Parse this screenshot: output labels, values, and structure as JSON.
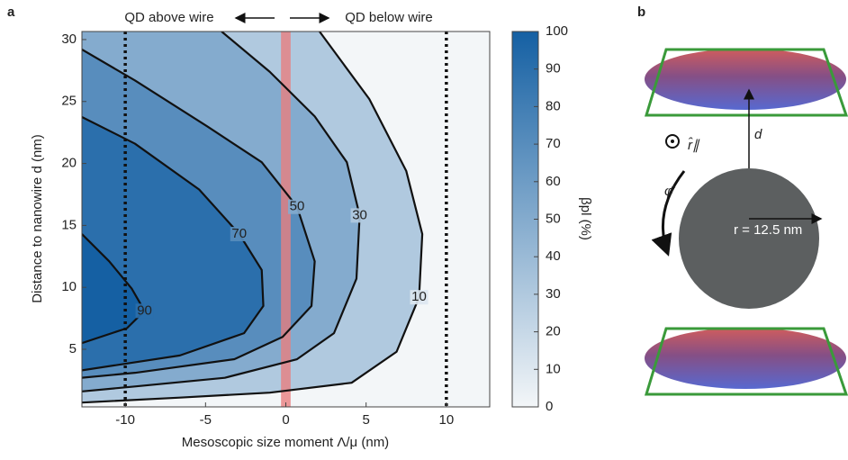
{
  "chart_data": {
    "type": "contour",
    "panel_label": "a",
    "annotations": {
      "left": "QD above wire",
      "right": "QD below wire"
    },
    "xlabel": "Mesoscopic size moment Λ/μ (nm)",
    "ylabel": "Distance to nanowire d (nm)",
    "xlim": [
      -12.7,
      12.7
    ],
    "ylim": [
      0.35,
      30.65
    ],
    "xticks": [
      -10,
      -5,
      0,
      5,
      10
    ],
    "yticks": [
      5,
      10,
      15,
      20,
      25,
      30
    ],
    "vlines": [
      -10,
      10
    ],
    "highlight": [
      -0.3,
      0.3
    ],
    "highlight_color": "#e88080",
    "contours": [
      {
        "level": 10,
        "x": [
          2.1,
          5.2,
          7.5,
          8.5,
          8.3,
          6.9,
          4.1,
          -1.0,
          -6.6,
          -12.7
        ],
        "y": [
          30.65,
          25.2,
          19.4,
          14.3,
          9.2,
          4.8,
          2.3,
          1.5,
          1.1,
          0.7
        ]
      },
      {
        "level": 30,
        "x": [
          -4.0,
          -1.0,
          1.8,
          3.8,
          4.6,
          4.4,
          3.0,
          0.7,
          -3.8,
          -9.4,
          -12.7
        ],
        "y": [
          30.65,
          27.4,
          23.8,
          20.1,
          15.8,
          10.7,
          6.3,
          4.2,
          2.7,
          2.0,
          1.6
        ]
      },
      {
        "level": 50,
        "x": [
          -12.7,
          -9.4,
          -4.9,
          -1.5,
          0.7,
          1.8,
          1.6,
          -0.2,
          -3.2,
          -9.4,
          -12.7
        ],
        "y": [
          29.2,
          26.7,
          23.0,
          20.1,
          16.5,
          12.1,
          8.5,
          6.0,
          4.2,
          3.1,
          2.7
        ]
      },
      {
        "level": 70,
        "x": [
          -12.7,
          -9.4,
          -5.4,
          -2.9,
          -1.5,
          -1.4,
          -2.6,
          -6.6,
          -12.7
        ],
        "y": [
          23.75,
          21.6,
          17.9,
          14.3,
          11.4,
          8.5,
          6.3,
          4.5,
          3.3
        ]
      },
      {
        "level": 90,
        "x": [
          -12.7,
          -11.0,
          -9.6,
          -8.8,
          -9.9,
          -12.7
        ],
        "y": [
          14.3,
          12.1,
          9.9,
          8.1,
          6.7,
          5.5
        ]
      }
    ],
    "colorbar": {
      "label": "βpl (%)",
      "lim": [
        0,
        100
      ],
      "ticks": [
        0,
        10,
        20,
        30,
        40,
        50,
        60,
        70,
        80,
        90,
        100
      ],
      "colors": [
        "#f3f6f8",
        "#1560a3"
      ]
    }
  },
  "panel_b": {
    "label": "b",
    "d": "d",
    "r_hat": "r̂∥",
    "phi_hat": "φ̂",
    "radius": "r = 12.5 nm"
  }
}
